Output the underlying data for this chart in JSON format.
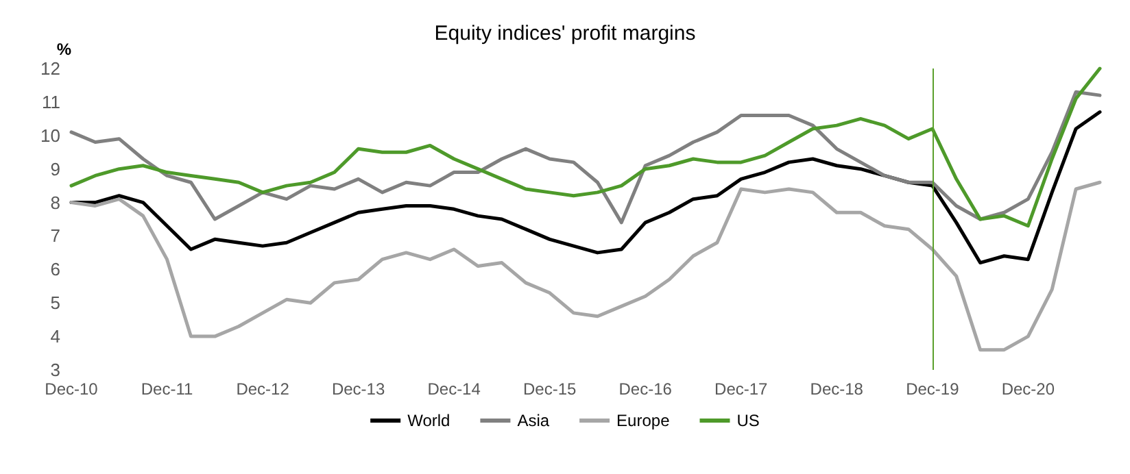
{
  "chart_data": {
    "type": "line",
    "title": "Equity indices' profit margins",
    "ylabel": "%",
    "categories": [
      "Dec-10",
      null,
      null,
      null,
      "Dec-11",
      null,
      null,
      null,
      "Dec-12",
      null,
      null,
      null,
      "Dec-13",
      null,
      null,
      null,
      "Dec-14",
      null,
      null,
      null,
      "Dec-15",
      null,
      null,
      null,
      "Dec-16",
      null,
      null,
      null,
      "Dec-17",
      null,
      null,
      null,
      "Dec-18",
      null,
      null,
      null,
      "Dec-19",
      null,
      null,
      null,
      "Dec-20",
      null,
      null,
      null
    ],
    "series": [
      {
        "name": "World",
        "color": "#000000",
        "values": [
          8.0,
          8.0,
          8.2,
          8.0,
          7.3,
          6.6,
          6.9,
          6.8,
          6.7,
          6.8,
          7.1,
          7.4,
          7.7,
          7.8,
          7.9,
          7.9,
          7.8,
          7.6,
          7.5,
          7.2,
          6.9,
          6.7,
          6.5,
          6.6,
          7.4,
          7.7,
          8.1,
          8.2,
          8.7,
          8.9,
          9.2,
          9.3,
          9.1,
          9.0,
          8.8,
          8.6,
          8.5,
          7.4,
          6.2,
          6.4,
          6.3,
          8.3,
          10.2,
          10.7
        ]
      },
      {
        "name": "Asia",
        "color": "#808080",
        "values": [
          10.1,
          9.8,
          9.9,
          9.3,
          8.8,
          8.6,
          7.5,
          7.9,
          8.3,
          8.1,
          8.5,
          8.4,
          8.7,
          8.3,
          8.6,
          8.5,
          8.9,
          8.9,
          9.3,
          9.6,
          9.3,
          9.2,
          8.6,
          7.4,
          9.1,
          9.4,
          9.8,
          10.1,
          10.6,
          10.6,
          10.6,
          10.3,
          9.6,
          9.2,
          8.8,
          8.6,
          8.6,
          7.9,
          7.5,
          7.7,
          8.1,
          9.5,
          11.3,
          11.2
        ]
      },
      {
        "name": "Europe",
        "color": "#a6a6a6",
        "values": [
          8.0,
          7.9,
          8.1,
          7.6,
          6.3,
          4.0,
          4.0,
          4.3,
          4.7,
          5.1,
          5.0,
          5.6,
          5.7,
          6.3,
          6.5,
          6.3,
          6.6,
          6.1,
          6.2,
          5.6,
          5.3,
          4.7,
          4.6,
          4.9,
          5.2,
          5.7,
          6.4,
          6.8,
          8.4,
          8.3,
          8.4,
          8.3,
          7.7,
          7.7,
          7.3,
          7.2,
          6.6,
          5.8,
          3.6,
          3.6,
          4.0,
          5.4,
          8.4,
          8.6
        ]
      },
      {
        "name": "US",
        "color": "#4e9a2a",
        "values": [
          8.5,
          8.8,
          9.0,
          9.1,
          8.9,
          8.8,
          8.7,
          8.6,
          8.3,
          8.5,
          8.6,
          8.9,
          9.6,
          9.5,
          9.5,
          9.7,
          9.3,
          9.0,
          8.7,
          8.4,
          8.3,
          8.2,
          8.3,
          8.5,
          9.0,
          9.1,
          9.3,
          9.2,
          9.2,
          9.4,
          9.8,
          10.2,
          10.3,
          10.5,
          10.3,
          9.9,
          10.2,
          8.7,
          7.5,
          7.6,
          7.3,
          9.3,
          11.1,
          12.0
        ]
      }
    ],
    "ylim": [
      3,
      12
    ],
    "yticks": [
      3,
      4,
      5,
      6,
      7,
      8,
      9,
      10,
      11,
      12
    ],
    "ref_lines": [
      {
        "axis": "x",
        "value": "Dec-19",
        "color": "#5aa02c"
      }
    ],
    "grid": false,
    "legend": "bottom",
    "marker": "none",
    "line_style": "solid"
  }
}
